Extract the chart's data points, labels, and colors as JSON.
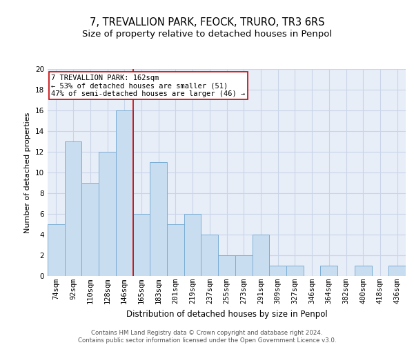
{
  "title": "7, TREVALLION PARK, FEOCK, TRURO, TR3 6RS",
  "subtitle": "Size of property relative to detached houses in Penpol",
  "xlabel": "Distribution of detached houses by size in Penpol",
  "ylabel": "Number of detached properties",
  "categories": [
    "74sqm",
    "92sqm",
    "110sqm",
    "128sqm",
    "146sqm",
    "165sqm",
    "183sqm",
    "201sqm",
    "219sqm",
    "237sqm",
    "255sqm",
    "273sqm",
    "291sqm",
    "309sqm",
    "327sqm",
    "346sqm",
    "364sqm",
    "382sqm",
    "400sqm",
    "418sqm",
    "436sqm"
  ],
  "values": [
    5,
    13,
    9,
    12,
    16,
    6,
    11,
    5,
    6,
    4,
    2,
    2,
    4,
    1,
    1,
    0,
    1,
    0,
    1,
    0,
    1
  ],
  "bar_color": "#c9ddf0",
  "bar_edge_color": "#7aadd4",
  "vline_x": 4.5,
  "vline_color": "#cc0000",
  "annotation_text": "7 TREVALLION PARK: 162sqm\n← 53% of detached houses are smaller (51)\n47% of semi-detached houses are larger (46) →",
  "annotation_box_color": "white",
  "annotation_box_edge": "#cc0000",
  "ylim": [
    0,
    20
  ],
  "yticks": [
    0,
    2,
    4,
    6,
    8,
    10,
    12,
    14,
    16,
    18,
    20
  ],
  "grid_color": "#c8d4e8",
  "bg_color": "#e8eef8",
  "footer": "Contains HM Land Registry data © Crown copyright and database right 2024.\nContains public sector information licensed under the Open Government Licence v3.0.",
  "title_fontsize": 10.5,
  "subtitle_fontsize": 9.5,
  "xlabel_fontsize": 8.5,
  "ylabel_fontsize": 8,
  "tick_fontsize": 7.5,
  "annotation_fontsize": 7.5,
  "footer_fontsize": 6.2
}
